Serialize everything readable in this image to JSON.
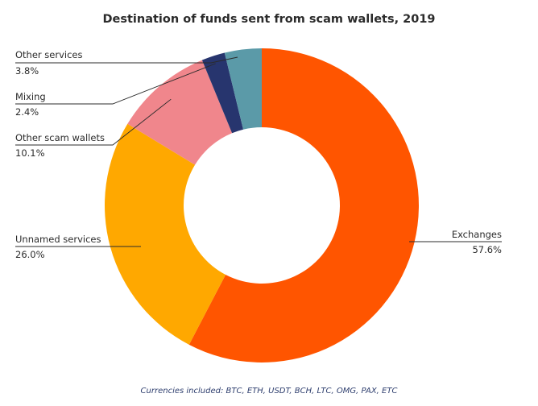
{
  "chart_data": {
    "type": "pie",
    "variant": "donut",
    "title": "Destination of funds sent from scam wallets, 2019",
    "footnote": "Currencies included: BTC, ETH, USDT, BCH, LTC, OMG, PAX, ETC",
    "unit": "%",
    "start": "top",
    "direction": "clockwise",
    "slices": [
      {
        "name": "Exchanges",
        "value": 57.6,
        "value_label": "57.6%",
        "color": "#FF5500",
        "label_side": "right"
      },
      {
        "name": "Unnamed services",
        "value": 26.0,
        "value_label": "26.0%",
        "color": "#FFA800",
        "label_side": "left"
      },
      {
        "name": "Other scam wallets",
        "value": 10.1,
        "value_label": "10.1%",
        "color": "#F0868C",
        "label_side": "left"
      },
      {
        "name": "Mixing",
        "value": 2.4,
        "value_label": "2.4%",
        "color": "#27356E",
        "label_side": "left"
      },
      {
        "name": "Other services",
        "value": 3.8,
        "value_label": "3.8%",
        "color": "#5B9AA8",
        "label_side": "left"
      }
    ]
  }
}
